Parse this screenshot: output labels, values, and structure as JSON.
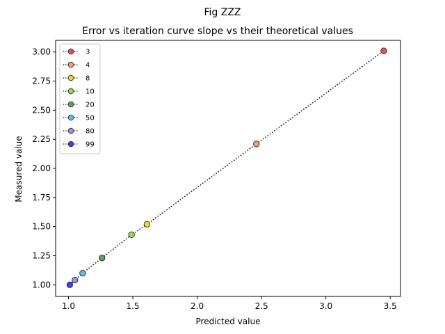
{
  "chart_data": {
    "type": "scatter",
    "suptitle": "Fig ZZZ",
    "title": "Error vs iteration curve slope vs their theoretical values",
    "xlabel": "Predicted value",
    "ylabel": "Measured value",
    "xlim": [
      0.9,
      3.58
    ],
    "ylim": [
      0.9,
      3.1
    ],
    "xticks": [
      "1.0",
      "1.5",
      "2.0",
      "2.5",
      "3.0",
      "3.5"
    ],
    "yticks": [
      "1.00",
      "1.25",
      "1.50",
      "1.75",
      "2.00",
      "2.25",
      "2.50",
      "2.75",
      "3.00"
    ],
    "grid": false,
    "legend_position": "upper left",
    "line_style": "dotted",
    "series": [
      {
        "name": "3",
        "x": 3.45,
        "y": 3.01,
        "color": "#f05050"
      },
      {
        "name": "4",
        "x": 2.46,
        "y": 2.21,
        "color": "#f5a070"
      },
      {
        "name": "8",
        "x": 1.61,
        "y": 1.52,
        "color": "#e8e020"
      },
      {
        "name": "10",
        "x": 1.49,
        "y": 1.43,
        "color": "#90e050"
      },
      {
        "name": "20",
        "x": 1.26,
        "y": 1.23,
        "color": "#60a060"
      },
      {
        "name": "50",
        "x": 1.11,
        "y": 1.1,
        "color": "#60c0e0"
      },
      {
        "name": "80",
        "x": 1.05,
        "y": 1.04,
        "color": "#a090f0"
      },
      {
        "name": "99",
        "x": 1.01,
        "y": 1.0,
        "color": "#4040f0"
      }
    ]
  }
}
